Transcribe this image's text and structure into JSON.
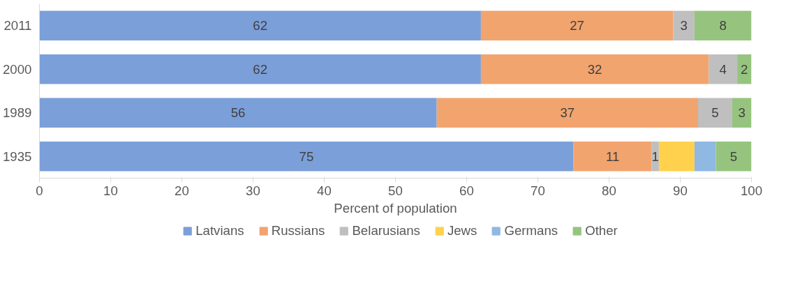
{
  "chart_data": {
    "type": "bar",
    "orientation": "horizontal",
    "stacked": true,
    "xlabel": "Percent of population",
    "categories": [
      "2011",
      "2000",
      "1989",
      "1935"
    ],
    "series": [
      {
        "name": "Latvians",
        "color": "#7b9fd9",
        "values": [
          62,
          62,
          55.8,
          75
        ],
        "value_labels": [
          "62",
          "62",
          "56",
          "75"
        ]
      },
      {
        "name": "Russians",
        "color": "#f2a46e",
        "values": [
          27,
          32,
          36.7,
          11
        ],
        "value_labels": [
          "27",
          "32",
          "37",
          "11"
        ]
      },
      {
        "name": "Belarusians",
        "color": "#bfbfbf",
        "values": [
          3,
          4,
          4.8,
          1
        ],
        "value_labels": [
          "3",
          "4",
          "5",
          "1"
        ]
      },
      {
        "name": "Jews",
        "color": "#ffd14d",
        "values": [
          null,
          null,
          null,
          5
        ],
        "value_labels": [
          null,
          null,
          null,
          null
        ]
      },
      {
        "name": "Germans",
        "color": "#8fb8e3",
        "values": [
          null,
          null,
          null,
          3
        ],
        "value_labels": [
          null,
          null,
          null,
          null
        ]
      },
      {
        "name": "Other",
        "color": "#96c47e",
        "values": [
          8,
          2,
          2.7,
          5
        ],
        "value_labels": [
          "8",
          "2",
          "3",
          "5"
        ]
      }
    ],
    "xlim": [
      0,
      100
    ],
    "xticks": [
      0,
      10,
      20,
      30,
      40,
      50,
      60,
      70,
      80,
      90,
      100
    ],
    "legend": "bottom"
  }
}
